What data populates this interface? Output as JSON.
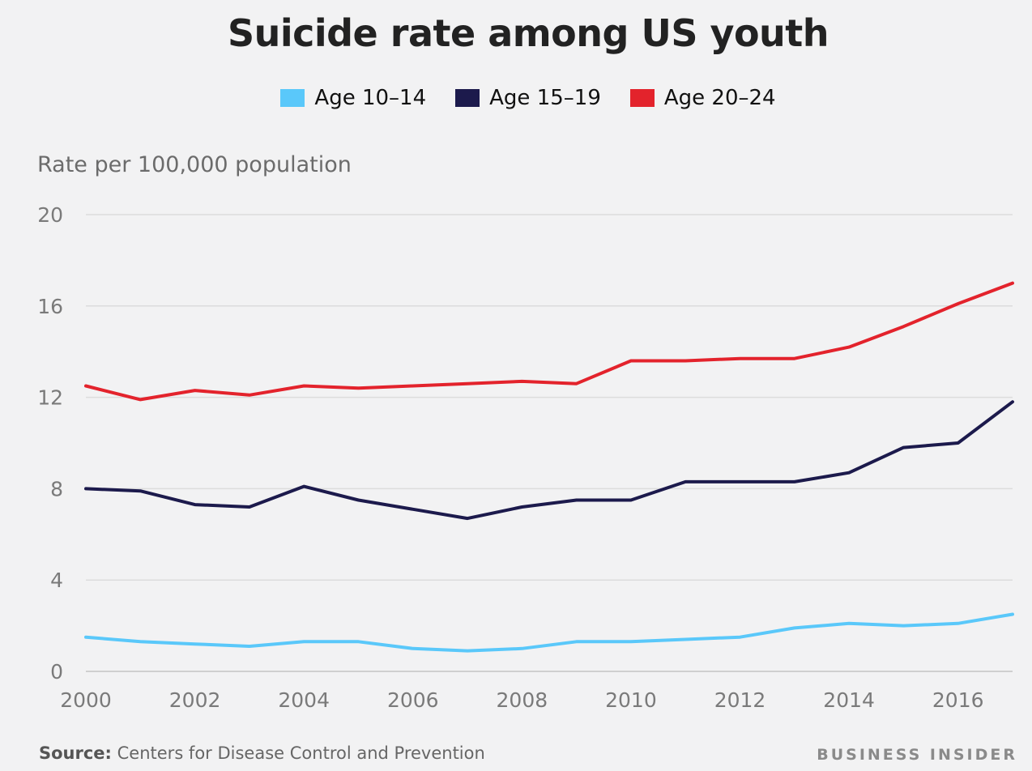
{
  "chart_data": {
    "type": "line",
    "title": "Suicide rate among US youth",
    "ylabel": "Rate per 100,000 population",
    "xlabel": "",
    "x": [
      2000,
      2001,
      2002,
      2003,
      2004,
      2005,
      2006,
      2007,
      2008,
      2009,
      2010,
      2011,
      2012,
      2013,
      2014,
      2015,
      2016,
      2017
    ],
    "x_ticks": [
      "2000",
      "2002",
      "2004",
      "2006",
      "2008",
      "2010",
      "2012",
      "2014",
      "2016"
    ],
    "y_ticks": [
      "0",
      "4",
      "8",
      "12",
      "16",
      "20"
    ],
    "xlim": [
      2000,
      2017
    ],
    "ylim": [
      0,
      20
    ],
    "grid": true,
    "legend_position": "top-center",
    "series": [
      {
        "name": "Age 10–14",
        "color": "#5ac8fa",
        "values": [
          1.5,
          1.3,
          1.2,
          1.1,
          1.3,
          1.3,
          1.0,
          0.9,
          1.0,
          1.3,
          1.3,
          1.4,
          1.5,
          1.9,
          2.1,
          2.0,
          2.1,
          2.5
        ]
      },
      {
        "name": "Age 15–19",
        "color": "#1c1a4c",
        "values": [
          8.0,
          7.9,
          7.3,
          7.2,
          8.1,
          7.5,
          7.1,
          6.7,
          7.2,
          7.5,
          7.5,
          8.3,
          8.3,
          8.3,
          8.7,
          9.8,
          10.0,
          11.8
        ]
      },
      {
        "name": "Age 20–24",
        "color": "#e3232c",
        "values": [
          12.5,
          11.9,
          12.3,
          12.1,
          12.5,
          12.4,
          12.5,
          12.6,
          12.7,
          12.6,
          13.6,
          13.6,
          13.7,
          13.7,
          14.2,
          15.1,
          16.1,
          17.0
        ]
      }
    ]
  },
  "footer": {
    "source_label": "Source:",
    "source_text": "Centers for Disease Control and Prevention",
    "brand": "BUSINESS INSIDER"
  }
}
